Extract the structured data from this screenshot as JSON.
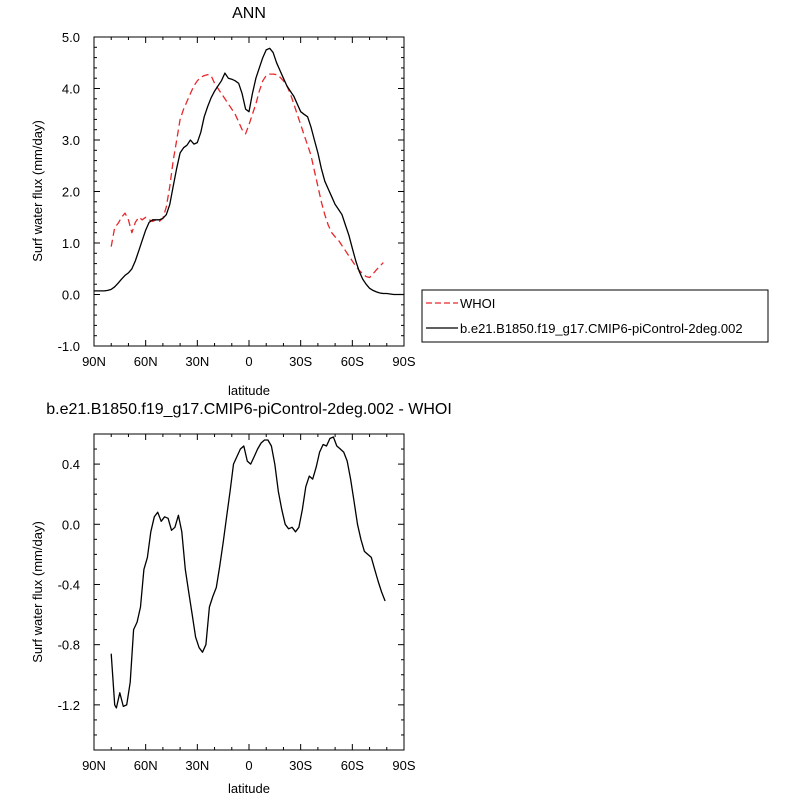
{
  "chart_data": [
    {
      "type": "line",
      "title": "ANN",
      "xlabel": "latitude",
      "ylabel": "Surf water flux (mm/day)",
      "xlim": [
        90,
        -90
      ],
      "ylim": [
        -1.0,
        5.0
      ],
      "x_ticks": [
        {
          "value": 90,
          "label": "90N"
        },
        {
          "value": 60,
          "label": "60N"
        },
        {
          "value": 30,
          "label": "30N"
        },
        {
          "value": 0,
          "label": "0"
        },
        {
          "value": -30,
          "label": "30S"
        },
        {
          "value": -60,
          "label": "60S"
        },
        {
          "value": -90,
          "label": "90S"
        }
      ],
      "y_ticks": [
        {
          "value": 5.0,
          "label": "5.0"
        },
        {
          "value": 4.0,
          "label": "4.0"
        },
        {
          "value": 3.0,
          "label": "3.0"
        },
        {
          "value": 2.0,
          "label": "2.0"
        },
        {
          "value": 1.0,
          "label": "1.0"
        },
        {
          "value": 0.0,
          "label": "0.0"
        },
        {
          "value": -1.0,
          "label": "-1.0"
        }
      ],
      "legend_position": "outside-right",
      "series": [
        {
          "name": "WHOI",
          "color": "#e8282b",
          "dash": true,
          "x": [
            80,
            78,
            76,
            74,
            72,
            70,
            68,
            66,
            64,
            62,
            60,
            58,
            56,
            54,
            52,
            50,
            48,
            46,
            44,
            42,
            40,
            38,
            36,
            34,
            32,
            30,
            28,
            26,
            24,
            22,
            20,
            18,
            16,
            14,
            12,
            10,
            8,
            6,
            4,
            2,
            0,
            -2,
            -4,
            -6,
            -8,
            -10,
            -12,
            -14,
            -16,
            -18,
            -20,
            -22,
            -24,
            -26,
            -28,
            -30,
            -32,
            -34,
            -36,
            -38,
            -40,
            -42,
            -44,
            -46,
            -48,
            -50,
            -52,
            -54,
            -56,
            -58,
            -60,
            -62,
            -64,
            -66,
            -68,
            -70,
            -72,
            -74,
            -76,
            -78
          ],
          "y": [
            0.93,
            1.3,
            1.38,
            1.5,
            1.58,
            1.45,
            1.2,
            1.4,
            1.5,
            1.45,
            1.5,
            1.45,
            1.42,
            1.45,
            1.42,
            1.48,
            1.7,
            2.1,
            2.6,
            3.0,
            3.4,
            3.6,
            3.75,
            3.9,
            4.05,
            4.15,
            4.22,
            4.25,
            4.27,
            4.25,
            4.1,
            4.0,
            3.9,
            3.8,
            3.7,
            3.6,
            3.5,
            3.35,
            3.2,
            3.12,
            3.3,
            3.5,
            3.7,
            3.95,
            4.15,
            4.25,
            4.28,
            4.28,
            4.27,
            4.22,
            4.15,
            4.05,
            3.9,
            3.7,
            3.5,
            3.3,
            3.1,
            2.9,
            2.7,
            2.4,
            2.1,
            1.8,
            1.55,
            1.35,
            1.2,
            1.12,
            1.05,
            0.95,
            0.85,
            0.75,
            0.65,
            0.55,
            0.47,
            0.4,
            0.35,
            0.33,
            0.4,
            0.48,
            0.55,
            0.62
          ]
        },
        {
          "name": "b.e21.B1850.f19_g17.CMIP6-piControl-2deg.002",
          "color": "#000000",
          "dash": false,
          "x": [
            90,
            88,
            86,
            84,
            82,
            80,
            78,
            76,
            74,
            72,
            70,
            68,
            66,
            64,
            62,
            60,
            58,
            56,
            54,
            52,
            50,
            48,
            46,
            44,
            42,
            40,
            38,
            36,
            34,
            32,
            30,
            28,
            26,
            24,
            22,
            20,
            18,
            16,
            14,
            12,
            10,
            8,
            6,
            4,
            2,
            0,
            -2,
            -4,
            -6,
            -8,
            -10,
            -12,
            -14,
            -16,
            -18,
            -20,
            -22,
            -24,
            -26,
            -28,
            -30,
            -32,
            -34,
            -36,
            -38,
            -40,
            -42,
            -44,
            -46,
            -48,
            -50,
            -52,
            -54,
            -56,
            -58,
            -60,
            -62,
            -64,
            -66,
            -68,
            -70,
            -72,
            -74,
            -76,
            -78,
            -80,
            -82,
            -84,
            -86,
            -88,
            -90
          ],
          "y": [
            0.07,
            0.07,
            0.07,
            0.07,
            0.08,
            0.1,
            0.15,
            0.22,
            0.3,
            0.37,
            0.42,
            0.5,
            0.65,
            0.85,
            1.05,
            1.25,
            1.4,
            1.45,
            1.45,
            1.45,
            1.48,
            1.55,
            1.75,
            2.1,
            2.45,
            2.75,
            2.85,
            2.9,
            3.0,
            2.92,
            2.95,
            3.15,
            3.45,
            3.65,
            3.82,
            3.95,
            4.05,
            4.15,
            4.3,
            4.2,
            4.18,
            4.15,
            4.1,
            3.9,
            3.6,
            3.55,
            3.9,
            4.2,
            4.4,
            4.6,
            4.75,
            4.78,
            4.7,
            4.5,
            4.35,
            4.2,
            4.05,
            3.95,
            3.85,
            3.7,
            3.55,
            3.5,
            3.45,
            3.25,
            3.0,
            2.75,
            2.45,
            2.2,
            2.05,
            1.9,
            1.75,
            1.65,
            1.55,
            1.35,
            1.15,
            0.9,
            0.65,
            0.45,
            0.3,
            0.2,
            0.12,
            0.08,
            0.05,
            0.03,
            0.02,
            0.02,
            0.01,
            0.0,
            0.0,
            0.0,
            0.0
          ]
        }
      ]
    },
    {
      "type": "line",
      "title": "b.e21.B1850.f19_g17.CMIP6-piControl-2deg.002 - WHOI",
      "xlabel": "latitude",
      "ylabel": "Surf water flux (mm/day)",
      "xlim": [
        90,
        -90
      ],
      "ylim": [
        -1.5,
        0.6
      ],
      "x_ticks": [
        {
          "value": 90,
          "label": "90N"
        },
        {
          "value": 60,
          "label": "60N"
        },
        {
          "value": 30,
          "label": "30N"
        },
        {
          "value": 0,
          "label": "0"
        },
        {
          "value": -30,
          "label": "30S"
        },
        {
          "value": -60,
          "label": "60S"
        },
        {
          "value": -90,
          "label": "90S"
        }
      ],
      "y_ticks": [
        {
          "value": 0.4,
          "label": "0.4"
        },
        {
          "value": 0.0,
          "label": "0.0"
        },
        {
          "value": -0.4,
          "label": "-0.4"
        },
        {
          "value": -0.8,
          "label": "-0.8"
        },
        {
          "value": -1.2,
          "label": "-1.2"
        }
      ],
      "series": [
        {
          "color": "#000000",
          "dash": false,
          "x": [
            80,
            78,
            77,
            75,
            73,
            71,
            69,
            67,
            65,
            63,
            61,
            59,
            57,
            55,
            53,
            51,
            49,
            47,
            45,
            43,
            41,
            39,
            37,
            35,
            33,
            31,
            29,
            27,
            25,
            23,
            21,
            19,
            17,
            15,
            13,
            11,
            9,
            7,
            5,
            3,
            1,
            -1,
            -3,
            -5,
            -7,
            -9,
            -11,
            -13,
            -15,
            -17,
            -19,
            -21,
            -23,
            -25,
            -27,
            -29,
            -31,
            -33,
            -35,
            -37,
            -39,
            -41,
            -43,
            -45,
            -47,
            -49,
            -51,
            -53,
            -55,
            -57,
            -59,
            -61,
            -63,
            -65,
            -67,
            -69,
            -71,
            -73,
            -75,
            -77,
            -79
          ],
          "y": [
            -0.86,
            -1.2,
            -1.22,
            -1.12,
            -1.21,
            -1.2,
            -1.05,
            -0.7,
            -0.65,
            -0.55,
            -0.3,
            -0.22,
            -0.05,
            0.05,
            0.08,
            0.02,
            0.05,
            0.04,
            -0.04,
            -0.02,
            0.06,
            -0.05,
            -0.3,
            -0.45,
            -0.6,
            -0.75,
            -0.82,
            -0.85,
            -0.8,
            -0.55,
            -0.48,
            -0.42,
            -0.28,
            -0.12,
            0.05,
            0.22,
            0.4,
            0.45,
            0.5,
            0.52,
            0.42,
            0.4,
            0.45,
            0.5,
            0.54,
            0.56,
            0.56,
            0.52,
            0.4,
            0.22,
            0.1,
            0.0,
            -0.03,
            -0.02,
            -0.05,
            -0.02,
            0.1,
            0.25,
            0.32,
            0.3,
            0.38,
            0.48,
            0.53,
            0.52,
            0.57,
            0.58,
            0.52,
            0.5,
            0.48,
            0.42,
            0.3,
            0.15,
            0.0,
            -0.1,
            -0.18,
            -0.2,
            -0.22,
            -0.3,
            -0.38,
            -0.45,
            -0.51
          ]
        }
      ]
    }
  ]
}
